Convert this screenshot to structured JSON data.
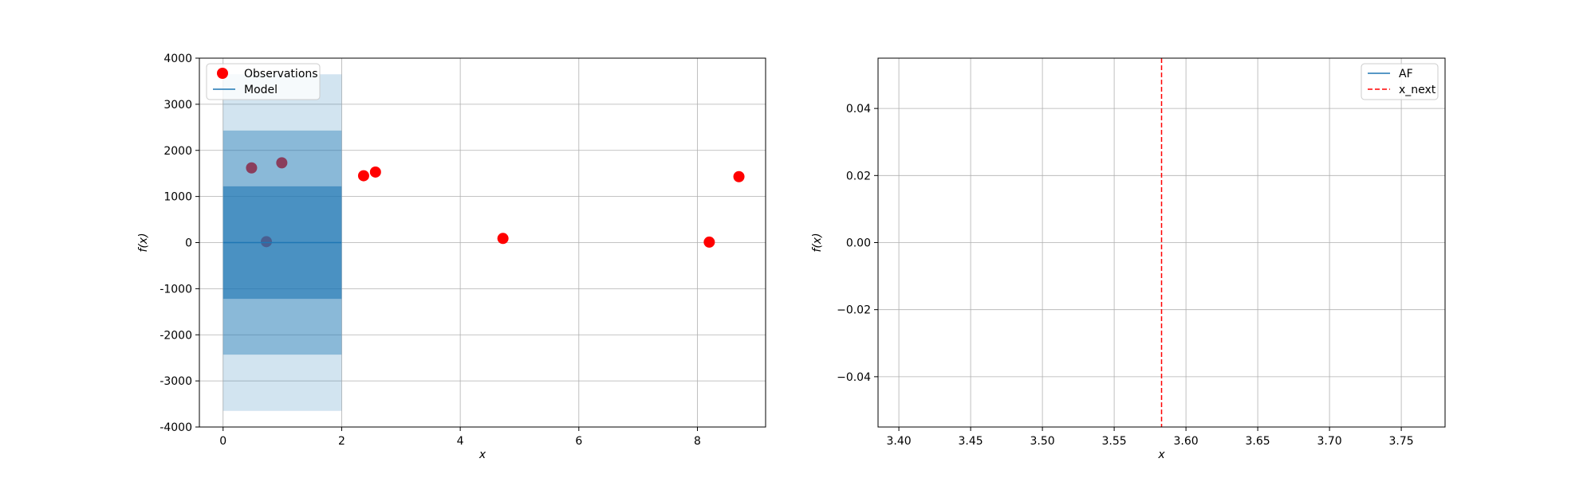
{
  "chart_data": [
    {
      "type": "scatter",
      "xlabel": "x",
      "ylabel": "f(x)",
      "xlim": [
        -0.4,
        9.15
      ],
      "ylim": [
        -4000,
        4000
      ],
      "xticks": [
        0,
        2,
        4,
        6,
        8
      ],
      "yticks": [
        -4000,
        -3000,
        -2000,
        -1000,
        0,
        1000,
        2000,
        3000,
        4000
      ],
      "grid": true,
      "legend_position": "top-left",
      "series": [
        {
          "name": "Observations",
          "kind": "scatter",
          "color": "#ff0000",
          "points": [
            {
              "x": 0.48,
              "y": 1620
            },
            {
              "x": 0.73,
              "y": 20
            },
            {
              "x": 0.99,
              "y": 1730
            },
            {
              "x": 2.37,
              "y": 1450
            },
            {
              "x": 2.57,
              "y": 1530
            },
            {
              "x": 4.72,
              "y": 90
            },
            {
              "x": 8.2,
              "y": 10
            },
            {
              "x": 8.7,
              "y": 1430
            }
          ]
        },
        {
          "name": "Model",
          "kind": "line",
          "color": "#1f77b4",
          "points": [
            {
              "x": 0,
              "y": 0
            },
            {
              "x": 2,
              "y": 0
            }
          ],
          "bands": [
            {
              "x0": 0,
              "x1": 2,
              "lower": -3650,
              "upper": 3650,
              "opacity": 0.2
            },
            {
              "x0": 0,
              "x1": 2,
              "lower": -2430,
              "upper": 2430,
              "opacity": 0.4
            },
            {
              "x0": 0,
              "x1": 2,
              "lower": -1220,
              "upper": 1220,
              "opacity": 0.6
            }
          ]
        }
      ]
    },
    {
      "type": "line",
      "xlabel": "x",
      "ylabel": "f(x)",
      "xlim": [
        3.3855,
        3.7805
      ],
      "ylim": [
        -0.055,
        0.055
      ],
      "xticks": [
        3.4,
        3.45,
        3.5,
        3.55,
        3.6,
        3.65,
        3.7,
        3.75
      ],
      "xtick_labels": [
        "3.40",
        "3.45",
        "3.50",
        "3.55",
        "3.60",
        "3.65",
        "3.70",
        "3.75"
      ],
      "yticks": [
        -0.04,
        -0.02,
        0.0,
        0.02,
        0.04
      ],
      "ytick_labels": [
        "−0.04",
        "−0.02",
        "0.00",
        "0.02",
        "0.04"
      ],
      "grid": true,
      "legend_position": "top-right",
      "series": [
        {
          "name": "AF",
          "kind": "line",
          "color": "#1f77b4",
          "points": []
        },
        {
          "name": "x_next",
          "kind": "vline",
          "color": "#ff0000",
          "style": "dashed",
          "x": 3.583
        }
      ]
    }
  ]
}
